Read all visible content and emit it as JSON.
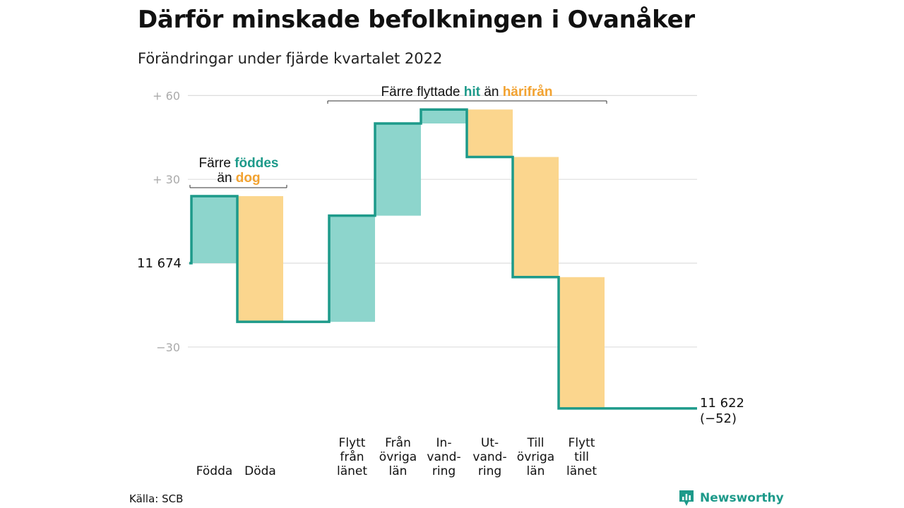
{
  "title": "Därför minskade befolkningen i Ovanåker",
  "subtitle": "Förändringar under fjärde kvartalet 2022",
  "source": "Källa: SCB",
  "brand": "Newsworthy",
  "colors": {
    "increase": "#8dd5cc",
    "decrease": "#fbd68e",
    "line": "#1d9a8a",
    "accent_teal": "#1d9a8a",
    "accent_orange": "#f2a230",
    "grid": "#dddddd"
  },
  "annotations": {
    "births": {
      "line1_prefix": "Färre ",
      "line1_highlight": "föddes",
      "line2_prefix": "än ",
      "line2_highlight": "dog"
    },
    "moves": {
      "prefix": "Färre flyttade ",
      "highlight1": "hit",
      "mid": " än ",
      "highlight2": "härifrån"
    }
  },
  "chart_data": {
    "type": "waterfall",
    "title": "Därför minskade befolkningen i Ovanåker",
    "subtitle": "Förändringar under fjärde kvartalet 2022",
    "start_value": 11674,
    "start_label": "11 674",
    "end_value": 11622,
    "end_label": "11 622",
    "end_change_label": "(−52)",
    "y_ticks": [
      {
        "value": 60,
        "label": "+ 60"
      },
      {
        "value": 30,
        "label": "+ 30"
      },
      {
        "value": -30,
        "label": "−30"
      }
    ],
    "ylim": [
      -52,
      60
    ],
    "steps": [
      {
        "label": [
          "Födda"
        ],
        "change": 24,
        "kind": "increase"
      },
      {
        "label": [
          "Döda"
        ],
        "change": -45,
        "kind": "decrease"
      },
      {
        "label": [
          ""
        ],
        "change": 0,
        "kind": "gap"
      },
      {
        "label": [
          "Flytt",
          "från",
          "länet"
        ],
        "change": 38,
        "kind": "increase"
      },
      {
        "label": [
          "Från",
          "övriga",
          "län"
        ],
        "change": 33,
        "kind": "increase"
      },
      {
        "label": [
          "In-",
          "vand-",
          "ring"
        ],
        "change": 5,
        "kind": "increase"
      },
      {
        "label": [
          "Ut-",
          "vand-",
          "ring"
        ],
        "change": -17,
        "kind": "decrease"
      },
      {
        "label": [
          "Till",
          "övriga",
          "län"
        ],
        "change": -43,
        "kind": "decrease"
      },
      {
        "label": [
          "Flytt",
          "till",
          "länet"
        ],
        "change": -47,
        "kind": "decrease"
      }
    ]
  }
}
